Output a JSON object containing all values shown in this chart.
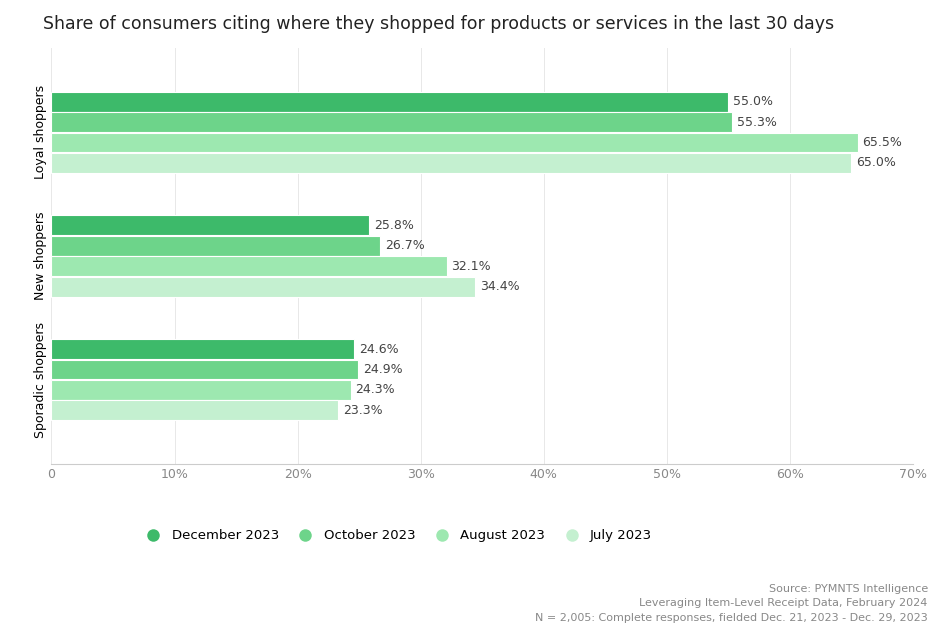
{
  "title": "Share of consumers citing where they shopped for products or services in the last 30 days",
  "categories": [
    "Sporadic shoppers",
    "New shoppers",
    "Loyal shoppers"
  ],
  "series": [
    {
      "label": "December 2023",
      "color": "#3dba6a"
    },
    {
      "label": "October 2023",
      "color": "#6dd48a"
    },
    {
      "label": "August 2023",
      "color": "#9de8b0"
    },
    {
      "label": "July 2023",
      "color": "#c4f0d0"
    }
  ],
  "values": {
    "Sporadic shoppers": [
      24.6,
      24.9,
      24.3,
      23.3
    ],
    "New shoppers": [
      25.8,
      26.7,
      32.1,
      34.4
    ],
    "Loyal shoppers": [
      55.0,
      55.3,
      65.5,
      65.0
    ]
  },
  "xlim": [
    0,
    70
  ],
  "xticks": [
    0,
    10,
    20,
    30,
    40,
    50,
    60,
    70
  ],
  "xtick_labels": [
    "0",
    "10%",
    "20%",
    "30%",
    "40%",
    "50%",
    "60%",
    "70%"
  ],
  "source_lines": [
    "Source: PYMNTS Intelligence",
    "Leveraging Item-Level Receipt Data, February 2024",
    "N = 2,005: Complete responses, fielded Dec. 21, 2023 - Dec. 29, 2023"
  ],
  "background_color": "#ffffff",
  "title_fontsize": 12.5,
  "label_fontsize": 9,
  "tick_fontsize": 9,
  "source_fontsize": 8,
  "legend_fontsize": 9.5
}
